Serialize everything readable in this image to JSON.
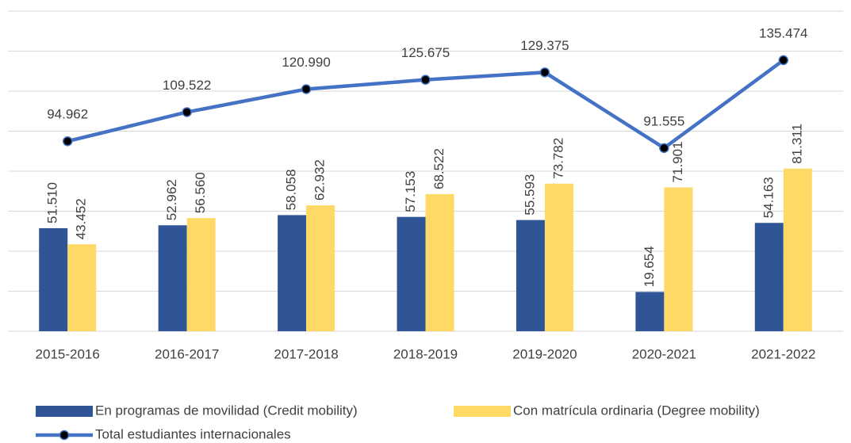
{
  "chart_data": {
    "type": "bar",
    "categories": [
      "2015-2016",
      "2016-2017",
      "2017-2018",
      "2018-2019",
      "2019-2020",
      "2020-2021",
      "2021-2022"
    ],
    "series": [
      {
        "name": "En programas de movilidad (Credit mobility)",
        "type": "bar",
        "color": "#2f5597",
        "values": [
          51510,
          52962,
          58058,
          57153,
          55593,
          19654,
          54163
        ],
        "value_labels": [
          "51.510",
          "52.962",
          "58.058",
          "57.153",
          "55.593",
          "19.654",
          "54.163"
        ]
      },
      {
        "name": "Con matrícula ordinaria (Degree mobility)",
        "type": "bar",
        "color": "#ffd966",
        "values": [
          43452,
          56560,
          62932,
          68522,
          73782,
          71901,
          81311
        ],
        "value_labels": [
          "43.452",
          "56.560",
          "62.932",
          "68.522",
          "73.782",
          "71.901",
          "81.311"
        ]
      },
      {
        "name": "Total estudiantes internacionales",
        "type": "line",
        "color": "#4472c4",
        "values": [
          94962,
          109522,
          120990,
          125675,
          129375,
          91555,
          135474
        ],
        "value_labels": [
          "94.962",
          "109.522",
          "120.990",
          "125.675",
          "129.375",
          "91.555",
          "135.474"
        ]
      }
    ],
    "ylim": [
      0,
      160000
    ],
    "yticks": [
      0,
      20000,
      40000,
      60000,
      80000,
      100000,
      120000,
      140000,
      160000
    ],
    "grid": true,
    "legend": "bottom"
  }
}
